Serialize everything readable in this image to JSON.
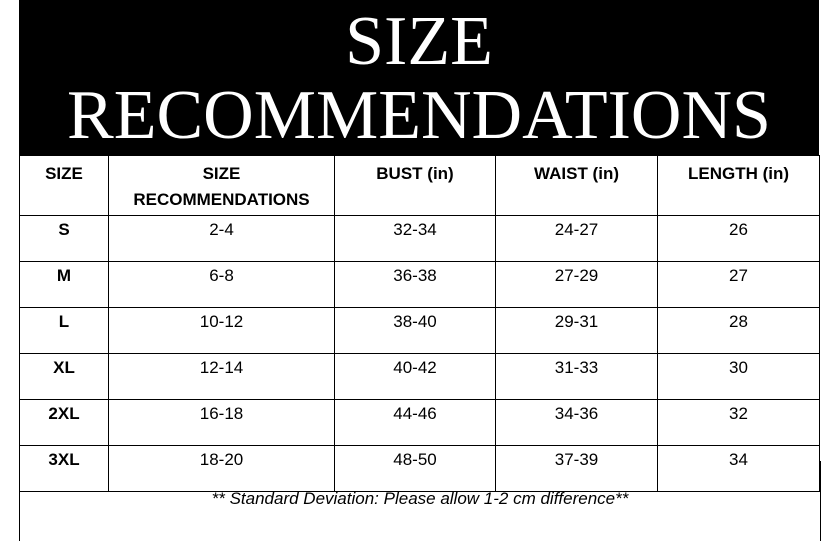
{
  "title": {
    "line1": "SIZE",
    "line2": "RECOMMENDATIONS"
  },
  "table": {
    "headers": [
      "SIZE",
      "SIZE RECOMMENDATIONS",
      "BUST (in)",
      "WAIST (in)",
      "LENGTH (in)"
    ],
    "rows": [
      [
        "S",
        "2-4",
        "32-34",
        "24-27",
        "26"
      ],
      [
        "M",
        "6-8",
        "36-38",
        "27-29",
        "27"
      ],
      [
        "L",
        "10-12",
        "38-40",
        "29-31",
        "28"
      ],
      [
        "XL",
        "12-14",
        "40-42",
        "31-33",
        "30"
      ],
      [
        "2XL",
        "16-18",
        "44-46",
        "34-36",
        "32"
      ],
      [
        "3XL",
        "18-20",
        "48-50",
        "37-39",
        "34"
      ]
    ]
  },
  "footer": "** Standard Deviation: Please allow 1-2 cm difference**"
}
